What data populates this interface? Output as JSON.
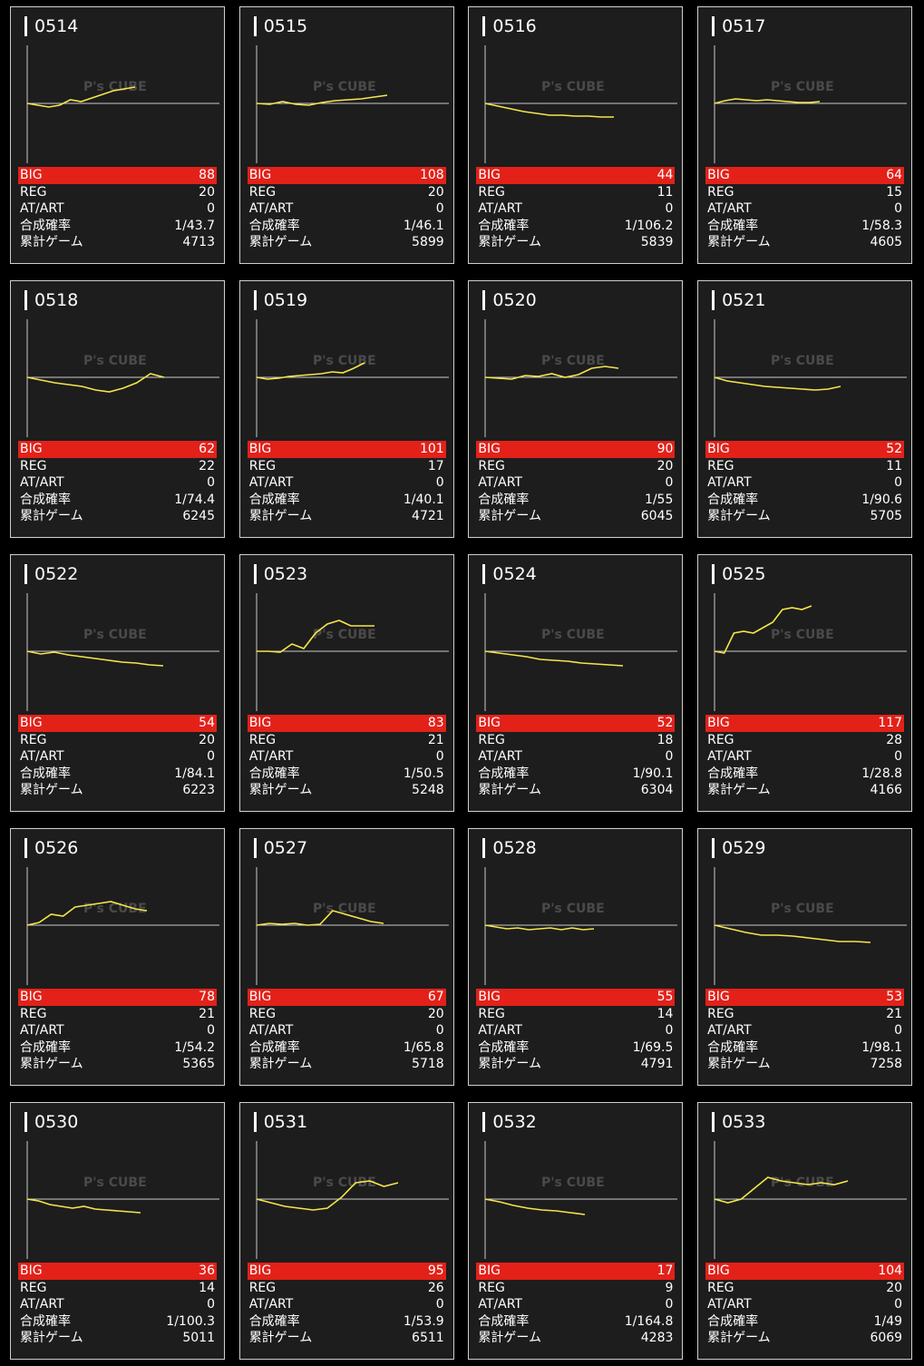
{
  "labels": {
    "big": "BIG",
    "reg": "REG",
    "at": "AT/ART",
    "prob": "合成確率",
    "games": "累計ゲーム"
  },
  "colors": {
    "background": "#000000",
    "card": "#1d1d1d",
    "big_bar": "#e32119",
    "graph_line": "#f5e64b",
    "axis": "#cccccc"
  },
  "watermark": "P's CUBE",
  "machines": [
    {
      "id": "0514",
      "big": "88",
      "reg": "20",
      "at": "0",
      "prob": "1/43.7",
      "games": "4713",
      "trend": [
        0,
        -2,
        -4,
        -2,
        4,
        2,
        6,
        10,
        14,
        16,
        18
      ]
    },
    {
      "id": "0515",
      "big": "108",
      "reg": "20",
      "at": "0",
      "prob": "1/46.1",
      "games": "5899",
      "trend": [
        0,
        -1,
        2,
        -1,
        -2,
        1,
        3,
        4,
        5,
        7,
        9
      ]
    },
    {
      "id": "0516",
      "big": "44",
      "reg": "11",
      "at": "0",
      "prob": "1/106.2",
      "games": "5839",
      "trend": [
        0,
        -3,
        -6,
        -9,
        -11,
        -13,
        -13,
        -14,
        -14,
        -15,
        -15
      ]
    },
    {
      "id": "0517",
      "big": "64",
      "reg": "15",
      "at": "0",
      "prob": "1/58.3",
      "games": "4605",
      "trend": [
        0,
        3,
        5,
        4,
        3,
        4,
        3,
        2,
        1,
        1,
        2
      ]
    },
    {
      "id": "0518",
      "big": "62",
      "reg": "22",
      "at": "0",
      "prob": "1/74.4",
      "games": "6245",
      "trend": [
        0,
        -3,
        -6,
        -8,
        -10,
        -14,
        -16,
        -12,
        -6,
        4,
        0
      ]
    },
    {
      "id": "0519",
      "big": "101",
      "reg": "17",
      "at": "0",
      "prob": "1/40.1",
      "games": "4721",
      "trend": [
        0,
        -2,
        -1,
        1,
        2,
        3,
        4,
        6,
        5,
        10,
        16
      ]
    },
    {
      "id": "0520",
      "big": "90",
      "reg": "20",
      "at": "0",
      "prob": "1/55",
      "games": "6045",
      "trend": [
        0,
        -1,
        -2,
        2,
        1,
        4,
        0,
        3,
        10,
        12,
        10
      ]
    },
    {
      "id": "0521",
      "big": "52",
      "reg": "11",
      "at": "0",
      "prob": "1/90.6",
      "games": "5705",
      "trend": [
        0,
        -4,
        -6,
        -8,
        -10,
        -11,
        -12,
        -13,
        -14,
        -13,
        -10
      ]
    },
    {
      "id": "0522",
      "big": "54",
      "reg": "20",
      "at": "0",
      "prob": "1/84.1",
      "games": "6223",
      "trend": [
        0,
        -3,
        -1,
        -4,
        -6,
        -8,
        -10,
        -12,
        -13,
        -15,
        -16
      ]
    },
    {
      "id": "0523",
      "big": "83",
      "reg": "21",
      "at": "0",
      "prob": "1/50.5",
      "games": "5248",
      "trend": [
        0,
        0,
        -1,
        8,
        3,
        20,
        30,
        34,
        28,
        28,
        28
      ]
    },
    {
      "id": "0524",
      "big": "52",
      "reg": "18",
      "at": "0",
      "prob": "1/90.1",
      "games": "6304",
      "trend": [
        0,
        -2,
        -4,
        -6,
        -9,
        -10,
        -11,
        -13,
        -14,
        -15,
        -16
      ]
    },
    {
      "id": "0525",
      "big": "117",
      "reg": "28",
      "at": "0",
      "prob": "1/28.8",
      "games": "4166",
      "trend": [
        0,
        -2,
        20,
        22,
        20,
        26,
        32,
        46,
        48,
        46,
        50
      ]
    },
    {
      "id": "0526",
      "big": "78",
      "reg": "21",
      "at": "0",
      "prob": "1/54.2",
      "games": "5365",
      "trend": [
        0,
        3,
        12,
        10,
        20,
        22,
        24,
        26,
        22,
        18,
        16
      ]
    },
    {
      "id": "0527",
      "big": "67",
      "reg": "20",
      "at": "0",
      "prob": "1/65.8",
      "games": "5718",
      "trend": [
        0,
        2,
        1,
        2,
        0,
        1,
        16,
        12,
        8,
        4,
        2
      ]
    },
    {
      "id": "0528",
      "big": "55",
      "reg": "14",
      "at": "0",
      "prob": "1/69.5",
      "games": "4791",
      "trend": [
        0,
        -2,
        -4,
        -3,
        -5,
        -4,
        -3,
        -5,
        -3,
        -5,
        -4
      ]
    },
    {
      "id": "0529",
      "big": "53",
      "reg": "21",
      "at": "0",
      "prob": "1/98.1",
      "games": "7258",
      "trend": [
        0,
        -4,
        -8,
        -11,
        -11,
        -12,
        -14,
        -16,
        -18,
        -18,
        -19
      ]
    },
    {
      "id": "0530",
      "big": "36",
      "reg": "14",
      "at": "0",
      "prob": "1/100.3",
      "games": "5011",
      "trend": [
        0,
        -2,
        -6,
        -8,
        -10,
        -8,
        -11,
        -12,
        -13,
        -14,
        -15
      ]
    },
    {
      "id": "0531",
      "big": "95",
      "reg": "26",
      "at": "0",
      "prob": "1/53.9",
      "games": "6511",
      "trend": [
        0,
        -4,
        -8,
        -10,
        -12,
        -10,
        2,
        18,
        20,
        14,
        18
      ]
    },
    {
      "id": "0532",
      "big": "17",
      "reg": "9",
      "at": "0",
      "prob": "1/164.8",
      "games": "4283",
      "trend": [
        0,
        -3,
        -7,
        -10,
        -12,
        -13,
        -15,
        -17
      ]
    },
    {
      "id": "0533",
      "big": "104",
      "reg": "20",
      "at": "0",
      "prob": "1/49",
      "games": "6069",
      "trend": [
        0,
        -4,
        0,
        12,
        24,
        20,
        18,
        16,
        18,
        16,
        20
      ]
    }
  ]
}
